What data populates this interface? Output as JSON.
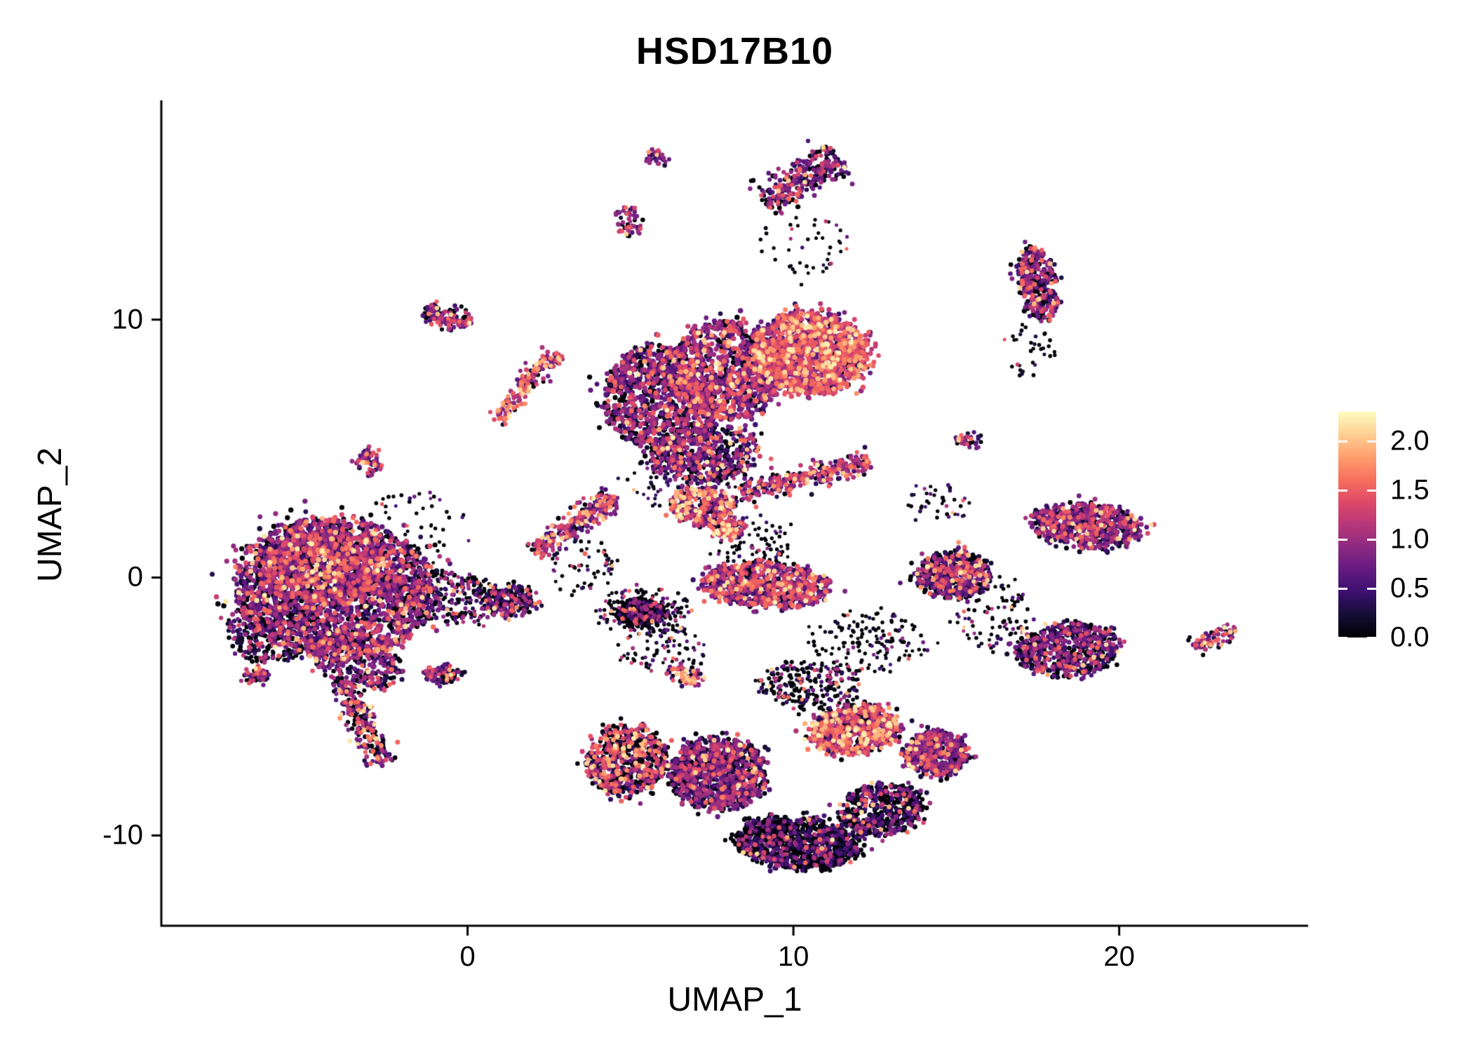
{
  "chart_data": {
    "type": "scatter",
    "title": "HSD17B10",
    "xlabel": "UMAP_1",
    "ylabel": "UMAP_2",
    "xlim": [
      -9.4,
      25.8
    ],
    "ylim": [
      -13.5,
      18.5
    ],
    "grid": false,
    "x_ticks": [
      {
        "value": 0,
        "label": "0"
      },
      {
        "value": 10,
        "label": "10"
      },
      {
        "value": 20,
        "label": "20"
      }
    ],
    "y_ticks": [
      {
        "value": 10,
        "label": "10"
      },
      {
        "value": 0,
        "label": "0"
      },
      {
        "value": -10,
        "label": "-10"
      }
    ],
    "color_scale": {
      "name": "magma",
      "stops": [
        "#000004",
        "#140e36",
        "#3b0f70",
        "#641a80",
        "#8c2981",
        "#b73779",
        "#de4968",
        "#f7705c",
        "#fe9f6d",
        "#fecf92",
        "#fcfdbf"
      ]
    },
    "value_bands": {
      "zero": [
        0.0,
        0.05
      ],
      "low": [
        0.15,
        0.55
      ],
      "mid": [
        0.55,
        1.1
      ],
      "high": [
        1.1,
        1.6
      ],
      "vhigh": [
        1.6,
        2.25
      ]
    },
    "clusters": [
      {
        "name": "left-body",
        "shape": "ellipse",
        "cx": -4.1,
        "cy": -0.4,
        "rx": 3.1,
        "ry": 2.7,
        "rot": -10,
        "n": 2100,
        "r": 3.3,
        "mix": [
          0.22,
          0.2,
          0.38,
          0.16,
          0.04
        ]
      },
      {
        "name": "left-core-bright",
        "shape": "ellipse",
        "cx": -4.4,
        "cy": 0.4,
        "rx": 1.9,
        "ry": 1.4,
        "rot": 0,
        "n": 700,
        "r": 3.3,
        "mix": [
          0.1,
          0.15,
          0.4,
          0.28,
          0.07
        ]
      },
      {
        "name": "left-fringe-dark",
        "shape": "ellipse",
        "cx": -5.9,
        "cy": -2.0,
        "rx": 1.5,
        "ry": 1.3,
        "rot": 20,
        "n": 380,
        "r": 2.9,
        "mix": [
          0.5,
          0.22,
          0.2,
          0.07,
          0.01
        ]
      },
      {
        "name": "left-lower-lobe",
        "shape": "ellipse",
        "cx": -3.4,
        "cy": -3.2,
        "rx": 1.5,
        "ry": 1.0,
        "rot": -25,
        "n": 320,
        "r": 3.1,
        "mix": [
          0.3,
          0.22,
          0.3,
          0.13,
          0.05
        ]
      },
      {
        "name": "left-tail-streak",
        "shape": "streak",
        "x1": -3.9,
        "y1": -4.0,
        "x2": -2.55,
        "y2": -7.35,
        "w": 0.55,
        "n": 230,
        "r": 3.0,
        "mix": [
          0.25,
          0.15,
          0.3,
          0.18,
          0.12
        ]
      },
      {
        "name": "left-small-satellite",
        "shape": "ellipse",
        "cx": -6.45,
        "cy": -3.8,
        "rx": 0.4,
        "ry": 0.25,
        "rot": 0,
        "n": 45,
        "r": 2.9,
        "mix": [
          0.3,
          0.2,
          0.3,
          0.15,
          0.05
        ]
      },
      {
        "name": "left-right-connector",
        "shape": "ellipse",
        "cx": -0.6,
        "cy": -0.8,
        "rx": 1.7,
        "ry": 1.0,
        "rot": -5,
        "n": 300,
        "r": 2.6,
        "mix": [
          0.55,
          0.18,
          0.18,
          0.07,
          0.02
        ]
      },
      {
        "name": "connector-dense-blob",
        "shape": "ellipse",
        "cx": 1.3,
        "cy": -0.9,
        "rx": 0.85,
        "ry": 0.6,
        "rot": 0,
        "n": 230,
        "r": 2.9,
        "mix": [
          0.5,
          0.2,
          0.2,
          0.08,
          0.02
        ]
      },
      {
        "name": "small-below-connector",
        "shape": "ellipse",
        "cx": -0.75,
        "cy": -3.75,
        "rx": 0.55,
        "ry": 0.3,
        "rot": 10,
        "n": 90,
        "r": 2.9,
        "mix": [
          0.35,
          0.2,
          0.3,
          0.12,
          0.03
        ]
      },
      {
        "name": "tiny-left-upper",
        "shape": "ellipse",
        "cx": -3.05,
        "cy": 4.45,
        "rx": 0.33,
        "ry": 0.5,
        "rot": 0,
        "n": 55,
        "r": 3.0,
        "mix": [
          0.15,
          0.15,
          0.42,
          0.18,
          0.1
        ]
      },
      {
        "name": "small-upper-left",
        "shape": "ellipse",
        "cx": -0.65,
        "cy": 10.1,
        "rx": 0.8,
        "ry": 0.42,
        "rot": -15,
        "n": 115,
        "r": 3.0,
        "mix": [
          0.22,
          0.15,
          0.35,
          0.22,
          0.06
        ]
      },
      {
        "name": "upper-streak-lower",
        "shape": "streak",
        "x1": 0.95,
        "y1": 6.1,
        "x2": 1.8,
        "y2": 7.5,
        "w": 0.4,
        "n": 75,
        "r": 3.0,
        "mix": [
          0.12,
          0.12,
          0.3,
          0.28,
          0.18
        ]
      },
      {
        "name": "upper-streak-upper",
        "shape": "streak",
        "x1": 1.65,
        "y1": 7.35,
        "x2": 2.75,
        "y2": 8.7,
        "w": 0.4,
        "n": 95,
        "r": 3.0,
        "mix": [
          0.12,
          0.12,
          0.32,
          0.26,
          0.18
        ]
      },
      {
        "name": "mid-diagonal-streak",
        "shape": "streak",
        "x1": 2.1,
        "y1": 1.0,
        "x2": 4.5,
        "y2": 3.2,
        "w": 0.5,
        "n": 260,
        "r": 3.0,
        "mix": [
          0.15,
          0.15,
          0.38,
          0.22,
          0.1
        ]
      },
      {
        "name": "top-main-left",
        "shape": "ellipse",
        "cx": 5.9,
        "cy": 6.9,
        "rx": 1.7,
        "ry": 2.1,
        "rot": 15,
        "n": 950,
        "r": 3.3,
        "mix": [
          0.28,
          0.2,
          0.38,
          0.12,
          0.02
        ]
      },
      {
        "name": "top-main-mid",
        "shape": "ellipse",
        "cx": 7.9,
        "cy": 8.0,
        "rx": 1.8,
        "ry": 1.9,
        "rot": 0,
        "n": 1000,
        "r": 3.3,
        "mix": [
          0.15,
          0.15,
          0.4,
          0.25,
          0.05
        ]
      },
      {
        "name": "top-main-right",
        "shape": "ellipse",
        "cx": 10.5,
        "cy": 8.7,
        "rx": 1.8,
        "ry": 1.6,
        "rot": -10,
        "n": 1250,
        "r": 3.3,
        "mix": [
          0.06,
          0.08,
          0.3,
          0.4,
          0.16
        ]
      },
      {
        "name": "top-main-lower",
        "shape": "ellipse",
        "cx": 7.3,
        "cy": 4.8,
        "rx": 1.7,
        "ry": 1.1,
        "rot": 10,
        "n": 480,
        "r": 3.1,
        "mix": [
          0.3,
          0.18,
          0.32,
          0.15,
          0.05
        ]
      },
      {
        "name": "tiny-top-mid",
        "shape": "ellipse",
        "cx": 4.9,
        "cy": 13.8,
        "rx": 0.38,
        "ry": 0.55,
        "rot": 0,
        "n": 55,
        "r": 2.9,
        "mix": [
          0.3,
          0.2,
          0.35,
          0.12,
          0.03
        ]
      },
      {
        "name": "tiny-top-mid-upper",
        "shape": "ellipse",
        "cx": 5.75,
        "cy": 16.3,
        "rx": 0.28,
        "ry": 0.32,
        "rot": 0,
        "n": 30,
        "r": 2.9,
        "mix": [
          0.1,
          0.15,
          0.4,
          0.25,
          0.1
        ]
      },
      {
        "name": "top-right-streak",
        "shape": "streak",
        "x1": 9.1,
        "y1": 14.5,
        "x2": 11.4,
        "y2": 16.3,
        "w": 0.75,
        "n": 290,
        "r": 3.0,
        "mix": [
          0.3,
          0.2,
          0.36,
          0.12,
          0.02
        ]
      },
      {
        "name": "right-tall-cluster",
        "shape": "ellipse",
        "cx": 17.5,
        "cy": 11.4,
        "rx": 0.6,
        "ry": 1.45,
        "rot": 8,
        "n": 330,
        "r": 3.1,
        "mix": [
          0.3,
          0.22,
          0.33,
          0.12,
          0.03
        ]
      },
      {
        "name": "mid-upper-blob",
        "shape": "ellipse",
        "cx": 7.2,
        "cy": 2.8,
        "rx": 0.95,
        "ry": 0.75,
        "rot": 0,
        "n": 280,
        "r": 3.1,
        "mix": [
          0.1,
          0.12,
          0.3,
          0.3,
          0.18
        ]
      },
      {
        "name": "mid-upper-arm",
        "shape": "streak",
        "x1": 8.4,
        "y1": 3.3,
        "x2": 12.3,
        "y2": 4.5,
        "w": 0.5,
        "n": 300,
        "r": 3.0,
        "mix": [
          0.15,
          0.15,
          0.35,
          0.25,
          0.1
        ]
      },
      {
        "name": "mid-small-bits",
        "shape": "ellipse",
        "cx": 8.0,
        "cy": 1.9,
        "rx": 0.55,
        "ry": 0.35,
        "rot": 0,
        "n": 90,
        "r": 3.0,
        "mix": [
          0.12,
          0.12,
          0.3,
          0.28,
          0.18
        ]
      },
      {
        "name": "mid-ellipse",
        "shape": "ellipse",
        "cx": 9.2,
        "cy": -0.3,
        "rx": 2.0,
        "ry": 0.85,
        "rot": -4,
        "n": 750,
        "r": 3.2,
        "mix": [
          0.12,
          0.15,
          0.38,
          0.27,
          0.08
        ]
      },
      {
        "name": "dark-blob",
        "shape": "ellipse",
        "cx": 5.3,
        "cy": -1.35,
        "rx": 0.65,
        "ry": 0.5,
        "rot": 0,
        "n": 330,
        "r": 2.9,
        "mix": [
          0.8,
          0.1,
          0.07,
          0.02,
          0.01
        ]
      },
      {
        "name": "dark-blob-halo",
        "shape": "ellipse",
        "cx": 5.4,
        "cy": -1.4,
        "rx": 1.4,
        "ry": 1.0,
        "rot": 0,
        "n": 150,
        "r": 2.5,
        "mix": [
          0.6,
          0.15,
          0.15,
          0.07,
          0.03
        ]
      },
      {
        "name": "tiny-bright-streak",
        "shape": "ellipse",
        "cx": 6.7,
        "cy": -3.8,
        "rx": 0.55,
        "ry": 0.3,
        "rot": -20,
        "n": 70,
        "r": 3.0,
        "mix": [
          0.08,
          0.1,
          0.25,
          0.32,
          0.25
        ]
      },
      {
        "name": "bottom-left-arm",
        "shape": "ellipse",
        "cx": 4.9,
        "cy": -7.1,
        "rx": 1.2,
        "ry": 1.35,
        "rot": -20,
        "n": 650,
        "r": 3.1,
        "mix": [
          0.42,
          0.12,
          0.16,
          0.2,
          0.1
        ]
      },
      {
        "name": "bottom-mid-purple",
        "shape": "ellipse",
        "cx": 7.7,
        "cy": -7.6,
        "rx": 1.5,
        "ry": 1.4,
        "rot": 0,
        "n": 1000,
        "r": 3.2,
        "mix": [
          0.3,
          0.25,
          0.33,
          0.1,
          0.02
        ]
      },
      {
        "name": "bottom-dark-belt",
        "shape": "ellipse",
        "cx": 10.1,
        "cy": -10.3,
        "rx": 1.9,
        "ry": 1.0,
        "rot": -5,
        "n": 1000,
        "r": 3.0,
        "mix": [
          0.66,
          0.17,
          0.13,
          0.03,
          0.01
        ]
      },
      {
        "name": "bottom-dark-right",
        "shape": "ellipse",
        "cx": 12.7,
        "cy": -9.0,
        "rx": 1.3,
        "ry": 1.0,
        "rot": 15,
        "n": 500,
        "r": 3.0,
        "mix": [
          0.55,
          0.2,
          0.18,
          0.05,
          0.02
        ]
      },
      {
        "name": "bottom-bright-right",
        "shape": "ellipse",
        "cx": 11.9,
        "cy": -5.9,
        "rx": 1.4,
        "ry": 0.95,
        "rot": 10,
        "n": 650,
        "r": 3.2,
        "mix": [
          0.22,
          0.1,
          0.2,
          0.3,
          0.18
        ]
      },
      {
        "name": "bottom-right-purple",
        "shape": "ellipse",
        "cx": 14.4,
        "cy": -6.8,
        "rx": 1.0,
        "ry": 0.85,
        "rot": 0,
        "n": 450,
        "r": 3.2,
        "mix": [
          0.15,
          0.25,
          0.42,
          0.14,
          0.04
        ]
      },
      {
        "name": "bottom-top-connector",
        "shape": "ellipse",
        "cx": 10.5,
        "cy": -4.2,
        "rx": 1.6,
        "ry": 0.9,
        "rot": 0,
        "n": 240,
        "r": 2.6,
        "mix": [
          0.6,
          0.15,
          0.15,
          0.07,
          0.03
        ]
      },
      {
        "name": "right-mid-blob",
        "shape": "ellipse",
        "cx": 14.9,
        "cy": 0.1,
        "rx": 1.15,
        "ry": 0.9,
        "rot": 0,
        "n": 480,
        "r": 3.1,
        "mix": [
          0.32,
          0.2,
          0.28,
          0.14,
          0.06
        ]
      },
      {
        "name": "right-upper-cluster",
        "shape": "ellipse",
        "cx": 19.0,
        "cy": 2.0,
        "rx": 1.7,
        "ry": 0.85,
        "rot": -8,
        "n": 620,
        "r": 3.1,
        "mix": [
          0.2,
          0.2,
          0.4,
          0.16,
          0.04
        ]
      },
      {
        "name": "right-lower-cluster",
        "shape": "ellipse",
        "cx": 18.4,
        "cy": -2.8,
        "rx": 1.6,
        "ry": 1.0,
        "rot": 6,
        "n": 580,
        "r": 3.1,
        "mix": [
          0.35,
          0.25,
          0.3,
          0.08,
          0.02
        ]
      },
      {
        "name": "tiny-right-upper",
        "shape": "ellipse",
        "cx": 15.4,
        "cy": 5.3,
        "rx": 0.4,
        "ry": 0.28,
        "rot": 0,
        "n": 35,
        "r": 2.9,
        "mix": [
          0.2,
          0.2,
          0.35,
          0.2,
          0.05
        ]
      },
      {
        "name": "far-right-streak",
        "shape": "streak",
        "x1": 22.35,
        "y1": -2.75,
        "x2": 23.6,
        "y2": -1.95,
        "w": 0.32,
        "n": 70,
        "r": 2.9,
        "mix": [
          0.15,
          0.2,
          0.38,
          0.2,
          0.07
        ]
      },
      {
        "name": "sparse-mid-left",
        "shape": "ellipse",
        "cx": 3.5,
        "cy": 0.3,
        "rx": 1.1,
        "ry": 1.1,
        "rot": 0,
        "n": 60,
        "r": 2.4,
        "mix": [
          0.7,
          0.12,
          0.12,
          0.05,
          0.01
        ]
      },
      {
        "name": "sparse-mid-column",
        "shape": "ellipse",
        "cx": 8.7,
        "cy": 1.1,
        "rx": 1.2,
        "ry": 1.3,
        "rot": 0,
        "n": 120,
        "r": 2.4,
        "mix": [
          0.7,
          0.12,
          0.12,
          0.05,
          0.01
        ]
      },
      {
        "name": "sparse-lower-mid",
        "shape": "ellipse",
        "cx": 12.4,
        "cy": -2.5,
        "rx": 1.8,
        "ry": 1.2,
        "rot": 0,
        "n": 150,
        "r": 2.4,
        "mix": [
          0.72,
          0.12,
          0.11,
          0.04,
          0.01
        ]
      },
      {
        "name": "sparse-right-gap",
        "shape": "ellipse",
        "cx": 16.2,
        "cy": -1.3,
        "rx": 1.2,
        "ry": 1.5,
        "rot": 0,
        "n": 100,
        "r": 2.4,
        "mix": [
          0.68,
          0.14,
          0.12,
          0.05,
          0.01
        ]
      },
      {
        "name": "sparse-dark-region",
        "shape": "ellipse",
        "cx": 6.0,
        "cy": -2.8,
        "rx": 1.3,
        "ry": 0.9,
        "rot": 0,
        "n": 80,
        "r": 2.4,
        "mix": [
          0.7,
          0.12,
          0.12,
          0.05,
          0.01
        ]
      },
      {
        "name": "sparse-top-gap",
        "shape": "ellipse",
        "cx": 10.3,
        "cy": 12.9,
        "rx": 1.3,
        "ry": 1.2,
        "rot": 0,
        "n": 45,
        "r": 2.4,
        "mix": [
          0.7,
          0.12,
          0.13,
          0.04,
          0.01
        ]
      },
      {
        "name": "sparse-below-right-tall",
        "shape": "ellipse",
        "cx": 17.2,
        "cy": 8.8,
        "rx": 0.8,
        "ry": 1.1,
        "rot": 0,
        "n": 35,
        "r": 2.4,
        "mix": [
          0.7,
          0.15,
          0.1,
          0.04,
          0.01
        ]
      },
      {
        "name": "sparse-left-upper-gap",
        "shape": "ellipse",
        "cx": -1.4,
        "cy": 2.1,
        "rx": 1.6,
        "ry": 1.5,
        "rot": 0,
        "n": 50,
        "r": 2.4,
        "mix": [
          0.72,
          0.12,
          0.11,
          0.04,
          0.01
        ]
      },
      {
        "name": "sparse-q-top",
        "shape": "ellipse",
        "cx": 14.4,
        "cy": 2.9,
        "rx": 1.0,
        "ry": 0.8,
        "rot": 0,
        "n": 40,
        "r": 2.4,
        "mix": [
          0.7,
          0.12,
          0.12,
          0.05,
          0.01
        ]
      },
      {
        "name": "sparse-top-main-under",
        "shape": "ellipse",
        "cx": 6.8,
        "cy": 3.6,
        "rx": 2.2,
        "ry": 0.9,
        "rot": 0,
        "n": 90,
        "r": 2.4,
        "mix": [
          0.65,
          0.15,
          0.13,
          0.05,
          0.02
        ]
      }
    ]
  },
  "legend": {
    "vmin": 0,
    "vmax": 2.3,
    "ticks": [
      {
        "value": 2.0,
        "label": "2.0"
      },
      {
        "value": 1.5,
        "label": "1.5"
      },
      {
        "value": 1.0,
        "label": "1.0"
      },
      {
        "value": 0.5,
        "label": "0.5"
      },
      {
        "value": 0.0,
        "label": "0.0"
      }
    ]
  }
}
